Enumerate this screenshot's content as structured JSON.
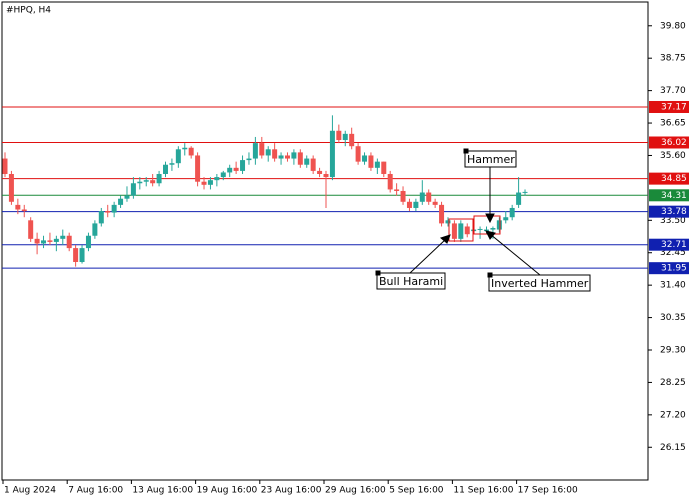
{
  "chart_data": {
    "type": "candlestick",
    "title": "#HPQ, H4",
    "candles": [
      [
        35.5,
        35.7,
        34.9,
        35.0
      ],
      [
        35.0,
        35.1,
        34.0,
        34.1
      ],
      [
        34.0,
        34.2,
        33.7,
        33.85
      ],
      [
        33.85,
        34.0,
        33.6,
        33.8
      ],
      [
        33.5,
        33.6,
        32.8,
        32.9
      ],
      [
        32.9,
        33.1,
        32.4,
        32.75
      ],
      [
        32.75,
        33.0,
        32.6,
        32.85
      ],
      [
        32.85,
        33.1,
        32.7,
        32.8
      ],
      [
        32.8,
        33.0,
        32.5,
        32.9
      ],
      [
        32.9,
        33.2,
        32.7,
        33.0
      ],
      [
        33.0,
        33.1,
        32.5,
        32.6
      ],
      [
        32.6,
        32.7,
        32.0,
        32.15
      ],
      [
        32.15,
        32.7,
        32.1,
        32.6
      ],
      [
        32.6,
        33.1,
        32.5,
        33.0
      ],
      [
        33.0,
        33.5,
        32.9,
        33.4
      ],
      [
        33.4,
        33.9,
        33.3,
        33.8
      ],
      [
        33.8,
        34.0,
        33.6,
        33.75
      ],
      [
        33.75,
        34.1,
        33.6,
        34.0
      ],
      [
        34.0,
        34.3,
        33.9,
        34.2
      ],
      [
        34.2,
        34.6,
        34.1,
        34.3
      ],
      [
        34.3,
        34.9,
        34.2,
        34.7
      ],
      [
        34.7,
        34.9,
        34.5,
        34.75
      ],
      [
        34.75,
        34.9,
        34.6,
        34.8
      ],
      [
        34.8,
        35.0,
        34.6,
        34.7
      ],
      [
        34.7,
        35.1,
        34.6,
        35.0
      ],
      [
        35.0,
        35.4,
        34.9,
        35.3
      ],
      [
        35.3,
        35.5,
        35.1,
        35.35
      ],
      [
        35.35,
        35.9,
        35.2,
        35.8
      ],
      [
        35.8,
        36.0,
        35.6,
        35.85
      ],
      [
        35.85,
        35.9,
        35.5,
        35.6
      ],
      [
        35.6,
        35.7,
        34.6,
        34.75
      ],
      [
        34.75,
        34.9,
        34.5,
        34.65
      ],
      [
        34.65,
        34.9,
        34.5,
        34.8
      ],
      [
        34.8,
        35.0,
        34.6,
        34.9
      ],
      [
        34.9,
        35.1,
        34.8,
        35.05
      ],
      [
        35.05,
        35.3,
        34.9,
        35.2
      ],
      [
        35.2,
        35.4,
        35.0,
        35.1
      ],
      [
        35.1,
        35.6,
        35.0,
        35.45
      ],
      [
        35.45,
        35.7,
        35.3,
        35.5
      ],
      [
        35.5,
        36.2,
        35.3,
        36.0
      ],
      [
        36.0,
        36.2,
        35.5,
        35.6
      ],
      [
        35.6,
        35.9,
        35.4,
        35.8
      ],
      [
        35.8,
        36.0,
        35.4,
        35.5
      ],
      [
        35.5,
        35.7,
        35.3,
        35.6
      ],
      [
        35.6,
        35.7,
        35.4,
        35.5
      ],
      [
        35.5,
        35.8,
        35.3,
        35.7
      ],
      [
        35.7,
        35.8,
        35.2,
        35.3
      ],
      [
        35.3,
        35.6,
        35.2,
        35.5
      ],
      [
        35.5,
        35.6,
        35.0,
        35.1
      ],
      [
        35.1,
        35.2,
        34.9,
        35.0
      ],
      [
        35.0,
        35.1,
        33.9,
        34.9
      ],
      [
        34.9,
        36.9,
        34.8,
        36.4
      ],
      [
        36.4,
        36.6,
        36.0,
        36.1
      ],
      [
        36.1,
        36.4,
        35.9,
        36.3
      ],
      [
        36.3,
        36.5,
        35.8,
        35.9
      ],
      [
        35.9,
        36.0,
        35.3,
        35.4
      ],
      [
        35.4,
        35.7,
        35.3,
        35.6
      ],
      [
        35.6,
        35.7,
        35.1,
        35.2
      ],
      [
        35.2,
        35.5,
        35.0,
        35.4
      ],
      [
        35.4,
        35.4,
        34.9,
        35.0
      ],
      [
        35.0,
        35.1,
        34.4,
        34.5
      ],
      [
        34.5,
        34.7,
        34.3,
        34.45
      ],
      [
        34.45,
        34.6,
        34.0,
        34.1
      ],
      [
        34.1,
        34.2,
        33.8,
        33.9
      ],
      [
        33.9,
        34.2,
        33.8,
        34.1
      ],
      [
        34.1,
        34.8,
        34.0,
        34.4
      ],
      [
        34.4,
        34.5,
        34.0,
        34.1
      ],
      [
        34.1,
        34.2,
        33.9,
        34.0
      ],
      [
        34.0,
        34.1,
        33.3,
        33.4
      ],
      [
        33.4,
        33.6,
        33.3,
        33.5
      ],
      [
        33.4,
        33.5,
        32.8,
        32.9
      ],
      [
        32.9,
        33.5,
        32.8,
        33.4
      ],
      [
        33.3,
        33.4,
        32.95,
        33.05
      ],
      [
        33.15,
        33.3,
        33.1,
        33.2
      ],
      [
        33.2,
        33.3,
        32.9,
        33.22
      ],
      [
        33.15,
        33.3,
        33.05,
        33.2
      ],
      [
        33.2,
        33.3,
        32.9,
        33.25
      ],
      [
        33.2,
        33.6,
        33.1,
        33.5
      ],
      [
        33.5,
        33.8,
        33.4,
        33.6
      ],
      [
        33.6,
        34.0,
        33.5,
        33.9
      ],
      [
        34.0,
        34.9,
        33.9,
        34.4
      ],
      [
        34.4,
        34.5,
        34.3,
        34.42
      ]
    ],
    "bull_color": "#26a69a",
    "bear_color": "#ef5350",
    "ylim": [
      25.09,
      40.57
    ],
    "yticks": [
      {
        "value": 39.8,
        "label": "39.80"
      },
      38.75,
      {
        "value": 37.7,
        "label": "37.70"
      },
      36.65,
      {
        "value": 35.6,
        "label": "35.60"
      },
      {
        "value": 33.5,
        "label": "33.50"
      },
      32.45,
      {
        "value": 31.4,
        "label": "31.40"
      },
      30.35,
      {
        "value": 29.3,
        "label": "29.30"
      },
      28.25,
      {
        "value": 27.2,
        "label": "27.20"
      },
      26.15
    ],
    "xticks": [
      {
        "value": 0,
        "label": "1 Aug 2024"
      },
      {
        "value": 10,
        "label": "7 Aug 16:00"
      },
      {
        "value": 20,
        "label": "13 Aug 16:00"
      },
      {
        "value": 30,
        "label": "19 Aug 16:00"
      },
      {
        "value": 40,
        "label": "23 Aug 16:00"
      },
      {
        "value": 50,
        "label": "29 Aug 16:00"
      },
      {
        "value": 60,
        "label": "5 Sep 16:00"
      },
      {
        "value": 70,
        "label": "11 Sep 16:00"
      },
      {
        "value": 80,
        "label": "17 Sep 16:00"
      }
    ],
    "levels": [
      {
        "value": 37.17,
        "color": "#e01010"
      },
      {
        "value": 36.02,
        "color": "#e01010"
      },
      {
        "value": 34.85,
        "color": "#e01010"
      },
      {
        "value": 34.31,
        "color": "#1a8a3a"
      },
      {
        "value": 33.78,
        "color": "#1020b0"
      },
      {
        "value": 32.71,
        "color": "#1020b0"
      },
      {
        "value": 31.95,
        "color": "#1020b0"
      }
    ],
    "annotations": [
      "Hammer",
      "Bull Harami",
      "Inverted Hammer"
    ]
  }
}
